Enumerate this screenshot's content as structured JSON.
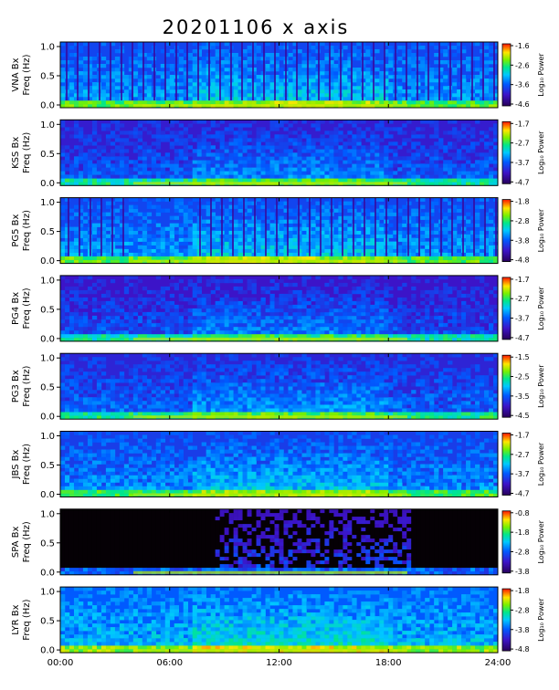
{
  "title": "20201106 x axis",
  "credit": "",
  "chart_data": {
    "type": "heatmap",
    "title": "20201106 x axis",
    "xlabel": "",
    "xticks": [
      "00:00",
      "06:00",
      "12:00",
      "18:00",
      "24:00"
    ],
    "xlim_hours": [
      0,
      24
    ],
    "panels": [
      {
        "name": "VNA",
        "ylabel_station": "VNA Bx",
        "ylabel_unit": "Freq (Hz)",
        "yticks": [
          "0.0",
          "0.5",
          "1.0"
        ],
        "ylim": [
          0,
          1.0
        ],
        "cbar_label": "Log₁₀ Power",
        "cbar_ticks": [
          "-1.6",
          "-2.6",
          "-3.6",
          "-4.6"
        ]
      },
      {
        "name": "KSS",
        "ylabel_station": "KSS Bx",
        "ylabel_unit": "Freq (Hz)",
        "yticks": [
          "0.0",
          "0.5",
          "1.0"
        ],
        "ylim": [
          0,
          1.0
        ],
        "cbar_label": "Log₁₀ Power",
        "cbar_ticks": [
          "-1.7",
          "-2.7",
          "-3.7",
          "-4.7"
        ]
      },
      {
        "name": "PG5",
        "ylabel_station": "PG5 Bx",
        "ylabel_unit": "Freq (Hz)",
        "yticks": [
          "0.0",
          "0.5",
          "1.0"
        ],
        "ylim": [
          0,
          1.0
        ],
        "cbar_label": "Log₁₀ Power",
        "cbar_ticks": [
          "-1.8",
          "-2.8",
          "-3.8",
          "-4.8"
        ]
      },
      {
        "name": "PG4",
        "ylabel_station": "PG4 Bx",
        "ylabel_unit": "Freq (Hz)",
        "yticks": [
          "0.0",
          "0.5",
          "1.0"
        ],
        "ylim": [
          0,
          1.0
        ],
        "cbar_label": "Log₁₀ Power",
        "cbar_ticks": [
          "-1.7",
          "-2.7",
          "-3.7",
          "-4.7"
        ]
      },
      {
        "name": "PG3",
        "ylabel_station": "PG3 Bx",
        "ylabel_unit": "Freq (Hz)",
        "yticks": [
          "0.0",
          "0.5",
          "1.0"
        ],
        "ylim": [
          0,
          1.0
        ],
        "cbar_label": "Log₁₀ Power",
        "cbar_ticks": [
          "-1.5",
          "-2.5",
          "-3.5",
          "-4.5"
        ]
      },
      {
        "name": "JBS",
        "ylabel_station": "JBS Bx",
        "ylabel_unit": "Freq (Hz)",
        "yticks": [
          "0.0",
          "0.5",
          "1.0"
        ],
        "ylim": [
          0,
          1.0
        ],
        "cbar_label": "Log₁₀ Power",
        "cbar_ticks": [
          "-1.7",
          "-2.7",
          "-3.7",
          "-4.7"
        ]
      },
      {
        "name": "SPA",
        "ylabel_station": "SPA Bx",
        "ylabel_unit": "Freq (Hz)",
        "yticks": [
          "0.0",
          "0.5",
          "1.0"
        ],
        "ylim": [
          0,
          1.0
        ],
        "cbar_label": "Log₁₀ Power",
        "cbar_ticks": [
          "-0.8",
          "-1.8",
          "-2.8",
          "-3.8"
        ]
      },
      {
        "name": "LYR",
        "ylabel_station": "LYR Bx",
        "ylabel_unit": "Freq (Hz)",
        "yticks": [
          "0.0",
          "0.5",
          "1.0"
        ],
        "ylim": [
          0,
          1.0
        ],
        "cbar_label": "Log₁₀ Power",
        "cbar_ticks": [
          "-1.8",
          "-2.8",
          "-3.8",
          "-4.8"
        ]
      }
    ]
  }
}
